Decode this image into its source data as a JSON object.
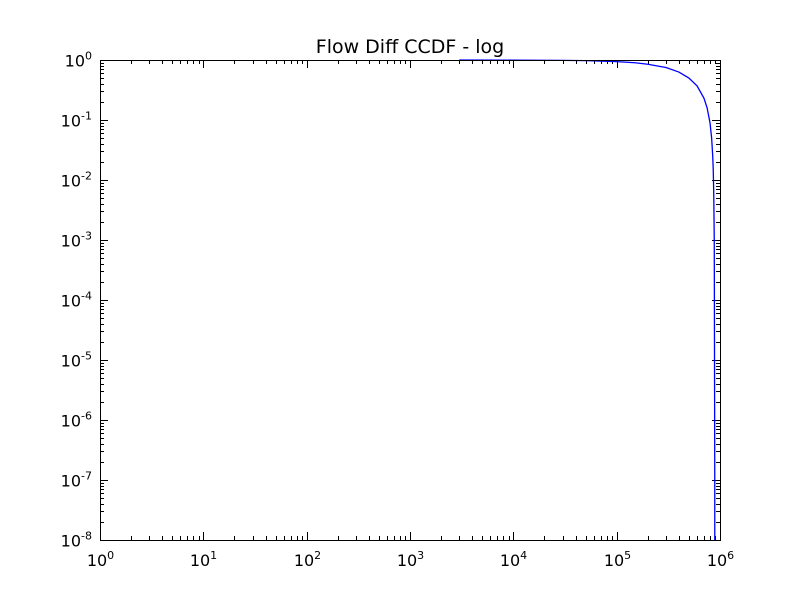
{
  "chart_data": {
    "type": "line",
    "title": "Flow Diff CCDF - log",
    "xscale": "log",
    "yscale": "log",
    "xlim": [
      1,
      1000000
    ],
    "ylim": [
      1e-08,
      1
    ],
    "grid": false,
    "x_ticks": [
      {
        "base": "10",
        "exp": "0",
        "value": 1
      },
      {
        "base": "10",
        "exp": "1",
        "value": 10
      },
      {
        "base": "10",
        "exp": "2",
        "value": 100
      },
      {
        "base": "10",
        "exp": "3",
        "value": 1000
      },
      {
        "base": "10",
        "exp": "4",
        "value": 10000
      },
      {
        "base": "10",
        "exp": "5",
        "value": 100000
      },
      {
        "base": "10",
        "exp": "6",
        "value": 1000000
      }
    ],
    "y_ticks": [
      {
        "base": "10",
        "exp": "0",
        "value": 1
      },
      {
        "base": "10",
        "exp": "-1",
        "value": 0.1
      },
      {
        "base": "10",
        "exp": "-2",
        "value": 0.01
      },
      {
        "base": "10",
        "exp": "-3",
        "value": 0.001
      },
      {
        "base": "10",
        "exp": "-4",
        "value": 0.0001
      },
      {
        "base": "10",
        "exp": "-5",
        "value": 1e-05
      },
      {
        "base": "10",
        "exp": "-6",
        "value": 1e-06
      },
      {
        "base": "10",
        "exp": "-7",
        "value": 1e-07
      },
      {
        "base": "10",
        "exp": "-8",
        "value": 1e-08
      }
    ],
    "series": [
      {
        "color": "#0000ff",
        "x": [
          3000,
          10000,
          30000,
          50000,
          100000,
          150000,
          200000,
          300000,
          400000,
          500000,
          600000,
          700000,
          750000,
          800000,
          830000,
          850000,
          860000,
          870000,
          880000,
          885000,
          890000,
          890000
        ],
        "y": [
          1.0,
          0.995,
          0.985,
          0.975,
          0.94,
          0.9,
          0.85,
          0.75,
          0.63,
          0.5,
          0.37,
          0.23,
          0.16,
          0.09,
          0.05,
          0.025,
          0.015,
          0.006,
          0.001,
          1e-05,
          1e-07,
          1e-08
        ]
      }
    ]
  }
}
